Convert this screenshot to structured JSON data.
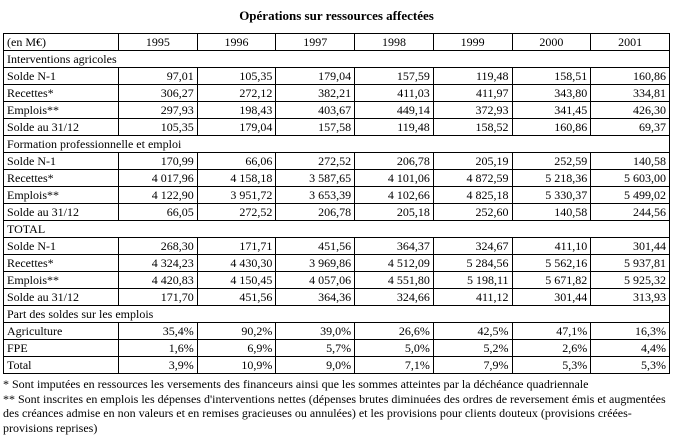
{
  "title": "Opérations sur ressources affectées",
  "table": {
    "unit_label": "(en M€)",
    "years": [
      "1995",
      "1996",
      "1997",
      "1998",
      "1999",
      "2000",
      "2001"
    ],
    "sections": [
      {
        "header": "Interventions agricoles",
        "rows": [
          {
            "label": "Solde N-1",
            "values": [
              "97,01",
              "105,35",
              "179,04",
              "157,59",
              "119,48",
              "158,51",
              "160,86"
            ]
          },
          {
            "label": "Recettes*",
            "values": [
              "306,27",
              "272,12",
              "382,21",
              "411,03",
              "411,97",
              "343,80",
              "334,81"
            ]
          },
          {
            "label": "Emplois**",
            "values": [
              "297,93",
              "198,43",
              "403,67",
              "449,14",
              "372,93",
              "341,45",
              "426,30"
            ]
          },
          {
            "label": "Solde au 31/12",
            "values": [
              "105,35",
              "179,04",
              "157,58",
              "119,48",
              "158,52",
              "160,86",
              "69,37"
            ]
          }
        ]
      },
      {
        "header": "Formation professionnelle et emploi",
        "rows": [
          {
            "label": "Solde N-1",
            "values": [
              "170,99",
              "66,06",
              "272,52",
              "206,78",
              "205,19",
              "252,59",
              "140,58"
            ]
          },
          {
            "label": "Recettes*",
            "values": [
              "4 017,96",
              "4 158,18",
              "3 587,65",
              "4 101,06",
              "4 872,59",
              "5 218,36",
              "5 603,00"
            ]
          },
          {
            "label": "Emplois**",
            "values": [
              "4 122,90",
              "3 951,72",
              "3 653,39",
              "4 102,66",
              "4 825,18",
              "5 330,37",
              "5 499,02"
            ]
          },
          {
            "label": "Solde au 31/12",
            "values": [
              "66,05",
              "272,52",
              "206,78",
              "205,18",
              "252,60",
              "140,58",
              "244,56"
            ]
          }
        ]
      },
      {
        "header": "TOTAL",
        "rows": [
          {
            "label": "Solde N-1",
            "values": [
              "268,30",
              "171,71",
              "451,56",
              "364,37",
              "324,67",
              "411,10",
              "301,44"
            ]
          },
          {
            "label": "Recettes*",
            "values": [
              "4 324,23",
              "4 430,30",
              "3 969,86",
              "4 512,09",
              "5 284,56",
              "5 562,16",
              "5 937,81"
            ]
          },
          {
            "label": "Emplois**",
            "values": [
              "4 420,83",
              "4 150,45",
              "4 057,06",
              "4 551,80",
              "5 198,11",
              "5 671,82",
              "5 925,32"
            ]
          },
          {
            "label": "Solde au 31/12",
            "values": [
              "171,70",
              "451,56",
              "364,36",
              "324,66",
              "411,12",
              "301,44",
              "313,93"
            ]
          }
        ]
      },
      {
        "header": "Part des soldes sur les emplois",
        "rows": [
          {
            "label": "Agriculture",
            "values": [
              "35,4%",
              "90,2%",
              "39,0%",
              "26,6%",
              "42,5%",
              "47,1%",
              "16,3%"
            ]
          },
          {
            "label": "FPE",
            "values": [
              "1,6%",
              "6,9%",
              "5,7%",
              "5,0%",
              "5,2%",
              "2,6%",
              "4,4%"
            ]
          },
          {
            "label": "Total",
            "values": [
              "3,9%",
              "10,9%",
              "9,0%",
              "7,1%",
              "7,9%",
              "5,3%",
              "5,3%"
            ]
          }
        ]
      }
    ]
  },
  "footnotes": [
    "* Sont imputées en ressources les versements des financeurs ainsi que les sommes atteintes par la déchéance quadriennale",
    "** Sont inscrites en emplois les dépenses d'interventions nettes (dépenses brutes diminuées des ordres de reversement émis et augmentées des créances admise en non valeurs et en remises gracieuses ou annulées) et les provisions pour clients douteux (provisions créées-provisions reprises)"
  ]
}
